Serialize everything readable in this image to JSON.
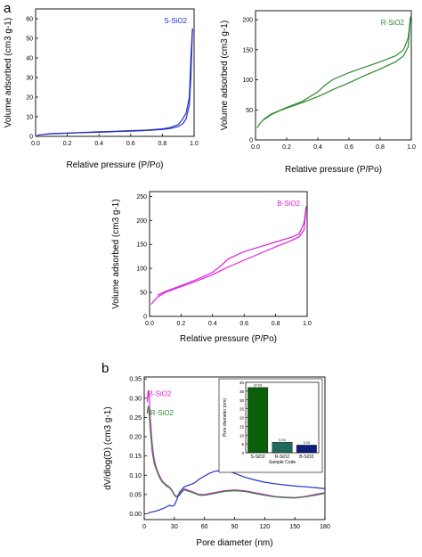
{
  "panel_labels": {
    "a": "a",
    "b": "b"
  },
  "chart_data": [
    {
      "type": "line",
      "subtitle": "S-SiO2",
      "xlabel": "Relative pressure (P/Po)",
      "ylabel": "Volume adsorbed (cm3 g-1)",
      "xlim": [
        0.0,
        1.0
      ],
      "ylim": [
        0,
        65
      ],
      "xticks": [
        "0.0",
        "0.2",
        "0.4",
        "0.6",
        "0.8",
        "1.0"
      ],
      "yticks": [
        "0",
        "10",
        "20",
        "30",
        "40",
        "50",
        "60"
      ],
      "color": "#2530c8",
      "series": [
        {
          "name": "S-SiO2",
          "x": [
            0.01,
            0.05,
            0.1,
            0.2,
            0.3,
            0.4,
            0.5,
            0.6,
            0.7,
            0.8,
            0.85,
            0.9,
            0.93,
            0.95,
            0.97,
            0.98,
            0.99
          ],
          "y": [
            0.5,
            1.0,
            1.3,
            1.6,
            1.9,
            2.1,
            2.4,
            2.7,
            3.0,
            3.5,
            4.0,
            5.0,
            6.5,
            9.0,
            16.0,
            30.0,
            55.0
          ]
        },
        {
          "x": [
            0.99,
            0.98,
            0.97,
            0.95,
            0.93,
            0.9,
            0.85,
            0.8,
            0.7,
            0.6,
            0.5,
            0.4,
            0.3,
            0.2,
            0.1,
            0.05
          ],
          "y": [
            55.0,
            40.0,
            20.0,
            12.0,
            9.0,
            6.0,
            4.5,
            3.8,
            3.2,
            2.9,
            2.6,
            2.3,
            2.0,
            1.7,
            1.4,
            1.0
          ]
        }
      ]
    },
    {
      "type": "line",
      "subtitle": "R-SiO2",
      "xlabel": "Relative pressure (P/Po)",
      "ylabel": "Volume adsorbed (cm3 g-1)",
      "xlim": [
        0.0,
        1.0
      ],
      "ylim": [
        0,
        215
      ],
      "xticks": [
        "0.0",
        "0.2",
        "0.4",
        "0.6",
        "0.8",
        "1.0"
      ],
      "yticks": [
        "0",
        "50",
        "100",
        "150",
        "200"
      ],
      "color": "#2e8b2e",
      "series": [
        {
          "name": "R-SiO2",
          "x": [
            0.01,
            0.03,
            0.05,
            0.1,
            0.15,
            0.2,
            0.3,
            0.4,
            0.45,
            0.5,
            0.6,
            0.7,
            0.8,
            0.9,
            0.95,
            0.98,
            0.995
          ],
          "y": [
            20,
            28,
            33,
            42,
            48,
            53,
            62,
            72,
            78,
            84,
            95,
            107,
            118,
            130,
            140,
            155,
            205
          ]
        },
        {
          "x": [
            0.995,
            0.98,
            0.95,
            0.9,
            0.8,
            0.7,
            0.6,
            0.5,
            0.45,
            0.4,
            0.3,
            0.2,
            0.1,
            0.05
          ],
          "y": [
            205,
            170,
            150,
            140,
            130,
            121,
            112,
            101,
            92,
            80,
            64,
            54,
            43,
            34
          ]
        }
      ]
    },
    {
      "type": "line",
      "subtitle": "B-SiO2",
      "xlabel": "Relative pressure (P/Po)",
      "ylabel": "Volume adsorbed (cm3 g-1)",
      "xlim": [
        0.0,
        1.0
      ],
      "ylim": [
        0,
        260
      ],
      "xticks": [
        "0.0",
        "0.2",
        "0.4",
        "0.6",
        "0.8",
        "1.0"
      ],
      "yticks": [
        "0",
        "50",
        "100",
        "150",
        "200",
        "250"
      ],
      "color": "#e020e0",
      "series": [
        {
          "name": "B-SiO2",
          "x": [
            0.01,
            0.03,
            0.05,
            0.1,
            0.15,
            0.2,
            0.3,
            0.4,
            0.45,
            0.5,
            0.6,
            0.7,
            0.8,
            0.9,
            0.95,
            0.98,
            0.995
          ],
          "y": [
            25,
            33,
            40,
            50,
            56,
            62,
            74,
            87,
            95,
            103,
            117,
            131,
            145,
            158,
            166,
            180,
            230
          ]
        },
        {
          "x": [
            0.995,
            0.98,
            0.95,
            0.9,
            0.8,
            0.7,
            0.6,
            0.5,
            0.45,
            0.4,
            0.3,
            0.2,
            0.1,
            0.05
          ],
          "y": [
            230,
            195,
            172,
            165,
            155,
            145,
            135,
            120,
            105,
            92,
            77,
            64,
            52,
            44
          ]
        }
      ]
    },
    {
      "type": "line",
      "xlabel": "Pore diameter (nm)",
      "ylabel": "dV/dlog(D) (cm3 g-1)",
      "xlim": [
        0,
        180
      ],
      "ylim": [
        -0.015,
        0.355
      ],
      "xticks": [
        "0",
        "30",
        "60",
        "90",
        "120",
        "150",
        "180"
      ],
      "yticks": [
        "0.00",
        "0.05",
        "0.10",
        "0.15",
        "0.20",
        "0.25",
        "0.30",
        "0.35"
      ],
      "series": [
        {
          "name": "B-SiO2",
          "color": "#e020e0",
          "x": [
            3,
            4,
            5,
            6,
            8,
            10,
            12,
            15,
            18,
            20,
            22,
            25,
            28,
            30,
            32,
            35,
            38,
            40,
            42,
            45,
            50,
            55,
            60,
            70,
            80,
            90,
            100,
            110,
            120,
            130,
            140,
            150,
            160,
            170,
            180
          ],
          "y": [
            0.29,
            0.32,
            0.3,
            0.25,
            0.18,
            0.14,
            0.12,
            0.1,
            0.085,
            0.08,
            0.075,
            0.07,
            0.06,
            0.05,
            0.045,
            0.05,
            0.06,
            0.065,
            0.063,
            0.06,
            0.055,
            0.05,
            0.05,
            0.055,
            0.06,
            0.062,
            0.06,
            0.055,
            0.05,
            0.045,
            0.043,
            0.042,
            0.045,
            0.05,
            0.055
          ]
        },
        {
          "name": "R-SiO2",
          "color": "#2e8b2e",
          "x": [
            3,
            4,
            5,
            6,
            8,
            10,
            12,
            15,
            18,
            20,
            22,
            25,
            28,
            30,
            32,
            35,
            38,
            40,
            42,
            45,
            50,
            55,
            60,
            70,
            80,
            90,
            100,
            110,
            120,
            130,
            140,
            150,
            160,
            170,
            180
          ],
          "y": [
            0.26,
            0.28,
            0.26,
            0.22,
            0.16,
            0.13,
            0.115,
            0.095,
            0.082,
            0.078,
            0.072,
            0.068,
            0.058,
            0.048,
            0.044,
            0.048,
            0.058,
            0.062,
            0.06,
            0.058,
            0.053,
            0.048,
            0.048,
            0.053,
            0.058,
            0.06,
            0.058,
            0.053,
            0.048,
            0.044,
            0.042,
            0.041,
            0.044,
            0.048,
            0.053
          ]
        },
        {
          "name": "S-SiO2",
          "color": "#2530c8",
          "x": [
            3,
            5,
            8,
            10,
            15,
            20,
            25,
            28,
            30,
            33,
            35,
            38,
            40,
            45,
            50,
            55,
            60,
            65,
            70,
            75,
            80,
            85,
            90,
            100,
            110,
            120,
            130,
            140,
            150,
            160,
            170,
            180
          ],
          "y": [
            0.0,
            0.003,
            0.005,
            0.006,
            0.01,
            0.015,
            0.022,
            0.02,
            0.022,
            0.04,
            0.055,
            0.065,
            0.07,
            0.075,
            0.08,
            0.09,
            0.098,
            0.105,
            0.11,
            0.112,
            0.113,
            0.11,
            0.105,
            0.095,
            0.088,
            0.082,
            0.078,
            0.075,
            0.072,
            0.07,
            0.068,
            0.065
          ]
        }
      ],
      "labels": [
        "B-SiO2",
        "R-SiO2",
        "S-SiO2"
      ]
    },
    {
      "type": "bar",
      "ylabel": "Pore diameter (nm)",
      "xlabel": "Sample Code",
      "categories": [
        "S-SiO2",
        "R-SiO2",
        "B-SiO2"
      ],
      "values": [
        37.03,
        5.93,
        4.33
      ],
      "value_labels": [
        "37.03",
        "5.93",
        "4.33"
      ],
      "colors": [
        "#0b5f0b",
        "#1f6a5a",
        "#0d1f78"
      ],
      "ylim": [
        0,
        40
      ],
      "yticks": [
        "0",
        "5",
        "10",
        "15",
        "20",
        "25",
        "30",
        "35",
        "40"
      ]
    }
  ]
}
